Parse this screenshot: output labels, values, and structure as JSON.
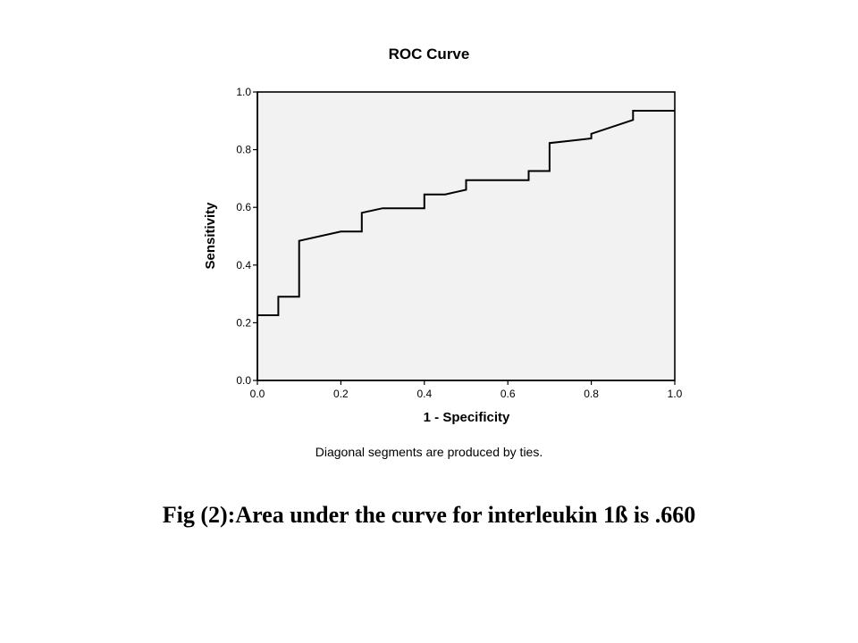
{
  "chart_data": {
    "type": "line",
    "title": "ROC Curve",
    "xlabel": "1 - Specificity",
    "ylabel": "Sensitivity",
    "xlim": [
      0,
      1
    ],
    "ylim": [
      0,
      1
    ],
    "x_ticks": [
      "0.0",
      "0.2",
      "0.4",
      "0.6",
      "0.8",
      "1.0"
    ],
    "y_ticks": [
      "0.0",
      "0.2",
      "0.4",
      "0.6",
      "0.8",
      "1.0"
    ],
    "grid": false,
    "plot_background": "#f2f2f2",
    "line_color": "#000000",
    "series": [
      {
        "x": [
          0.0,
          0.05,
          0.05,
          0.1,
          0.1,
          0.2,
          0.25,
          0.25,
          0.3,
          0.4,
          0.4,
          0.45,
          0.5,
          0.5,
          0.65,
          0.65,
          0.7,
          0.7,
          0.8,
          0.8,
          0.9,
          0.9,
          1.0
        ],
        "y": [
          0.226,
          0.226,
          0.29,
          0.29,
          0.484,
          0.516,
          0.516,
          0.581,
          0.597,
          0.597,
          0.645,
          0.645,
          0.661,
          0.694,
          0.694,
          0.726,
          0.726,
          0.823,
          0.839,
          0.855,
          0.903,
          0.935,
          0.935
        ]
      }
    ],
    "footnote": "Diagonal segments are produced by ties."
  },
  "caption": "Fig (2):Area under the curve for interleukin 1ß is .660"
}
